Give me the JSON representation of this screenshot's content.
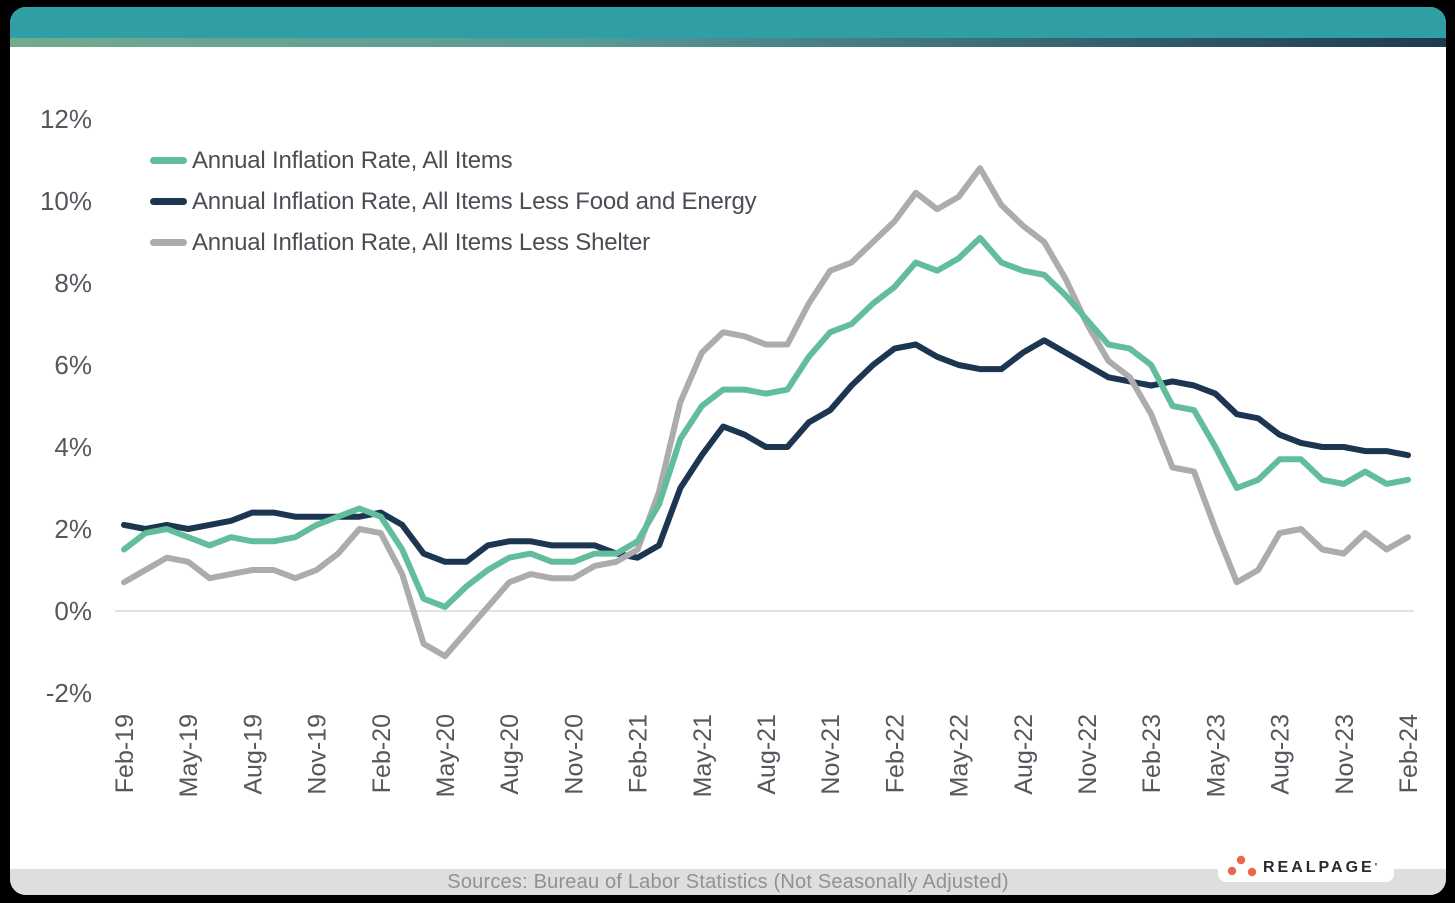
{
  "colors": {
    "page_bg": "#000000",
    "card_bg": "#FFFFFF",
    "header_bar": "#2F9EA5",
    "header_gradient_left": "#74AA8E",
    "header_gradient_mid": "#579B97",
    "header_gradient_right": "#1E3A52",
    "gridline": "#D9D9D9",
    "axis_text": "#54575D",
    "legend_text": "#4A4E54",
    "footer_bar": "#DEDEDE",
    "footer_text": "#8F9196",
    "logo_dots": "#E8694A",
    "logo_text": "#262A33"
  },
  "legend": {
    "items": [
      {
        "id": "all_items",
        "label": "Annual Inflation Rate, All Items",
        "color": "#62BD9D"
      },
      {
        "id": "all_items_less_food_energy",
        "label": "Annual Inflation Rate, All Items Less Food and Energy",
        "color": "#1C3550"
      },
      {
        "id": "all_items_less_shelter",
        "label": "Annual Inflation Rate, All Items Less Shelter",
        "color": "#ACACAC"
      }
    ]
  },
  "chart_data": {
    "type": "line",
    "x_start": "Feb-19",
    "x_end": "Feb-24",
    "x_frequency": "monthly",
    "tick_every_n_months": 3,
    "x_tick_labels": [
      "Feb-19",
      "May-19",
      "Aug-19",
      "Nov-19",
      "Feb-20",
      "May-20",
      "Aug-20",
      "Nov-20",
      "Feb-21",
      "May-21",
      "Aug-21",
      "Nov-21",
      "Feb-22",
      "May-22",
      "Aug-22",
      "Nov-22",
      "Feb-23",
      "May-23",
      "Aug-23",
      "Nov-23",
      "Feb-24"
    ],
    "y_ticks": [
      {
        "label": "12%",
        "value": 12
      },
      {
        "label": "10%",
        "value": 10
      },
      {
        "label": "8%",
        "value": 8
      },
      {
        "label": "6%",
        "value": 6
      },
      {
        "label": "4%",
        "value": 4
      },
      {
        "label": "2%",
        "value": 2
      },
      {
        "label": "0%",
        "value": 0
      },
      {
        "label": "-2%",
        "value": -2
      }
    ],
    "ylim": [
      -2,
      12
    ],
    "gridline_at": 0,
    "legend_position": "top-left-inside",
    "series": [
      {
        "id": "all_items",
        "name": "Annual Inflation Rate, All Items",
        "color": "#62BD9D",
        "values": [
          1.5,
          1.9,
          2.0,
          1.8,
          1.6,
          1.8,
          1.7,
          1.7,
          1.8,
          2.1,
          2.3,
          2.5,
          2.3,
          1.5,
          0.3,
          0.1,
          0.6,
          1.0,
          1.3,
          1.4,
          1.2,
          1.2,
          1.4,
          1.4,
          1.7,
          2.6,
          4.2,
          5.0,
          5.4,
          5.4,
          5.3,
          5.4,
          6.2,
          6.8,
          7.0,
          7.5,
          7.9,
          8.5,
          8.3,
          8.6,
          9.1,
          8.5,
          8.3,
          8.2,
          7.7,
          7.1,
          6.5,
          6.4,
          6.0,
          5.0,
          4.9,
          4.0,
          3.0,
          3.2,
          3.7,
          3.7,
          3.2,
          3.1,
          3.4,
          3.1,
          3.2
        ]
      },
      {
        "id": "all_items_less_food_energy",
        "name": "Annual Inflation Rate, All Items Less Food and Energy",
        "color": "#1C3550",
        "values": [
          2.1,
          2.0,
          2.1,
          2.0,
          2.1,
          2.2,
          2.4,
          2.4,
          2.3,
          2.3,
          2.3,
          2.3,
          2.4,
          2.1,
          1.4,
          1.2,
          1.2,
          1.6,
          1.7,
          1.7,
          1.6,
          1.6,
          1.6,
          1.4,
          1.3,
          1.6,
          3.0,
          3.8,
          4.5,
          4.3,
          4.0,
          4.0,
          4.6,
          4.9,
          5.5,
          6.0,
          6.4,
          6.5,
          6.2,
          6.0,
          5.9,
          5.9,
          6.3,
          6.6,
          6.3,
          6.0,
          5.7,
          5.6,
          5.5,
          5.6,
          5.5,
          5.3,
          4.8,
          4.7,
          4.3,
          4.1,
          4.0,
          4.0,
          3.9,
          3.9,
          3.8
        ]
      },
      {
        "id": "all_items_less_shelter",
        "name": "Annual Inflation Rate, All Items Less Shelter",
        "color": "#ACACAC",
        "values": [
          0.7,
          1.0,
          1.3,
          1.2,
          0.8,
          0.9,
          1.0,
          1.0,
          0.8,
          1.0,
          1.4,
          2.0,
          1.9,
          0.9,
          -0.8,
          -1.1,
          -0.5,
          0.1,
          0.7,
          0.9,
          0.8,
          0.8,
          1.1,
          1.2,
          1.5,
          2.9,
          5.1,
          6.3,
          6.8,
          6.7,
          6.5,
          6.5,
          7.5,
          8.3,
          8.5,
          9.0,
          9.5,
          10.2,
          9.8,
          10.1,
          10.8,
          9.9,
          9.4,
          9.0,
          8.1,
          7.0,
          6.1,
          5.7,
          4.8,
          3.5,
          3.4,
          2.0,
          0.7,
          1.0,
          1.9,
          2.0,
          1.5,
          1.4,
          1.9,
          1.5,
          1.8
        ]
      }
    ]
  },
  "footer": {
    "source_text": "Sources: Bureau of Labor Statistics (Not Seasonally Adjusted)"
  },
  "logo": {
    "text": "REALPAGE",
    "tm_mark": "'"
  }
}
